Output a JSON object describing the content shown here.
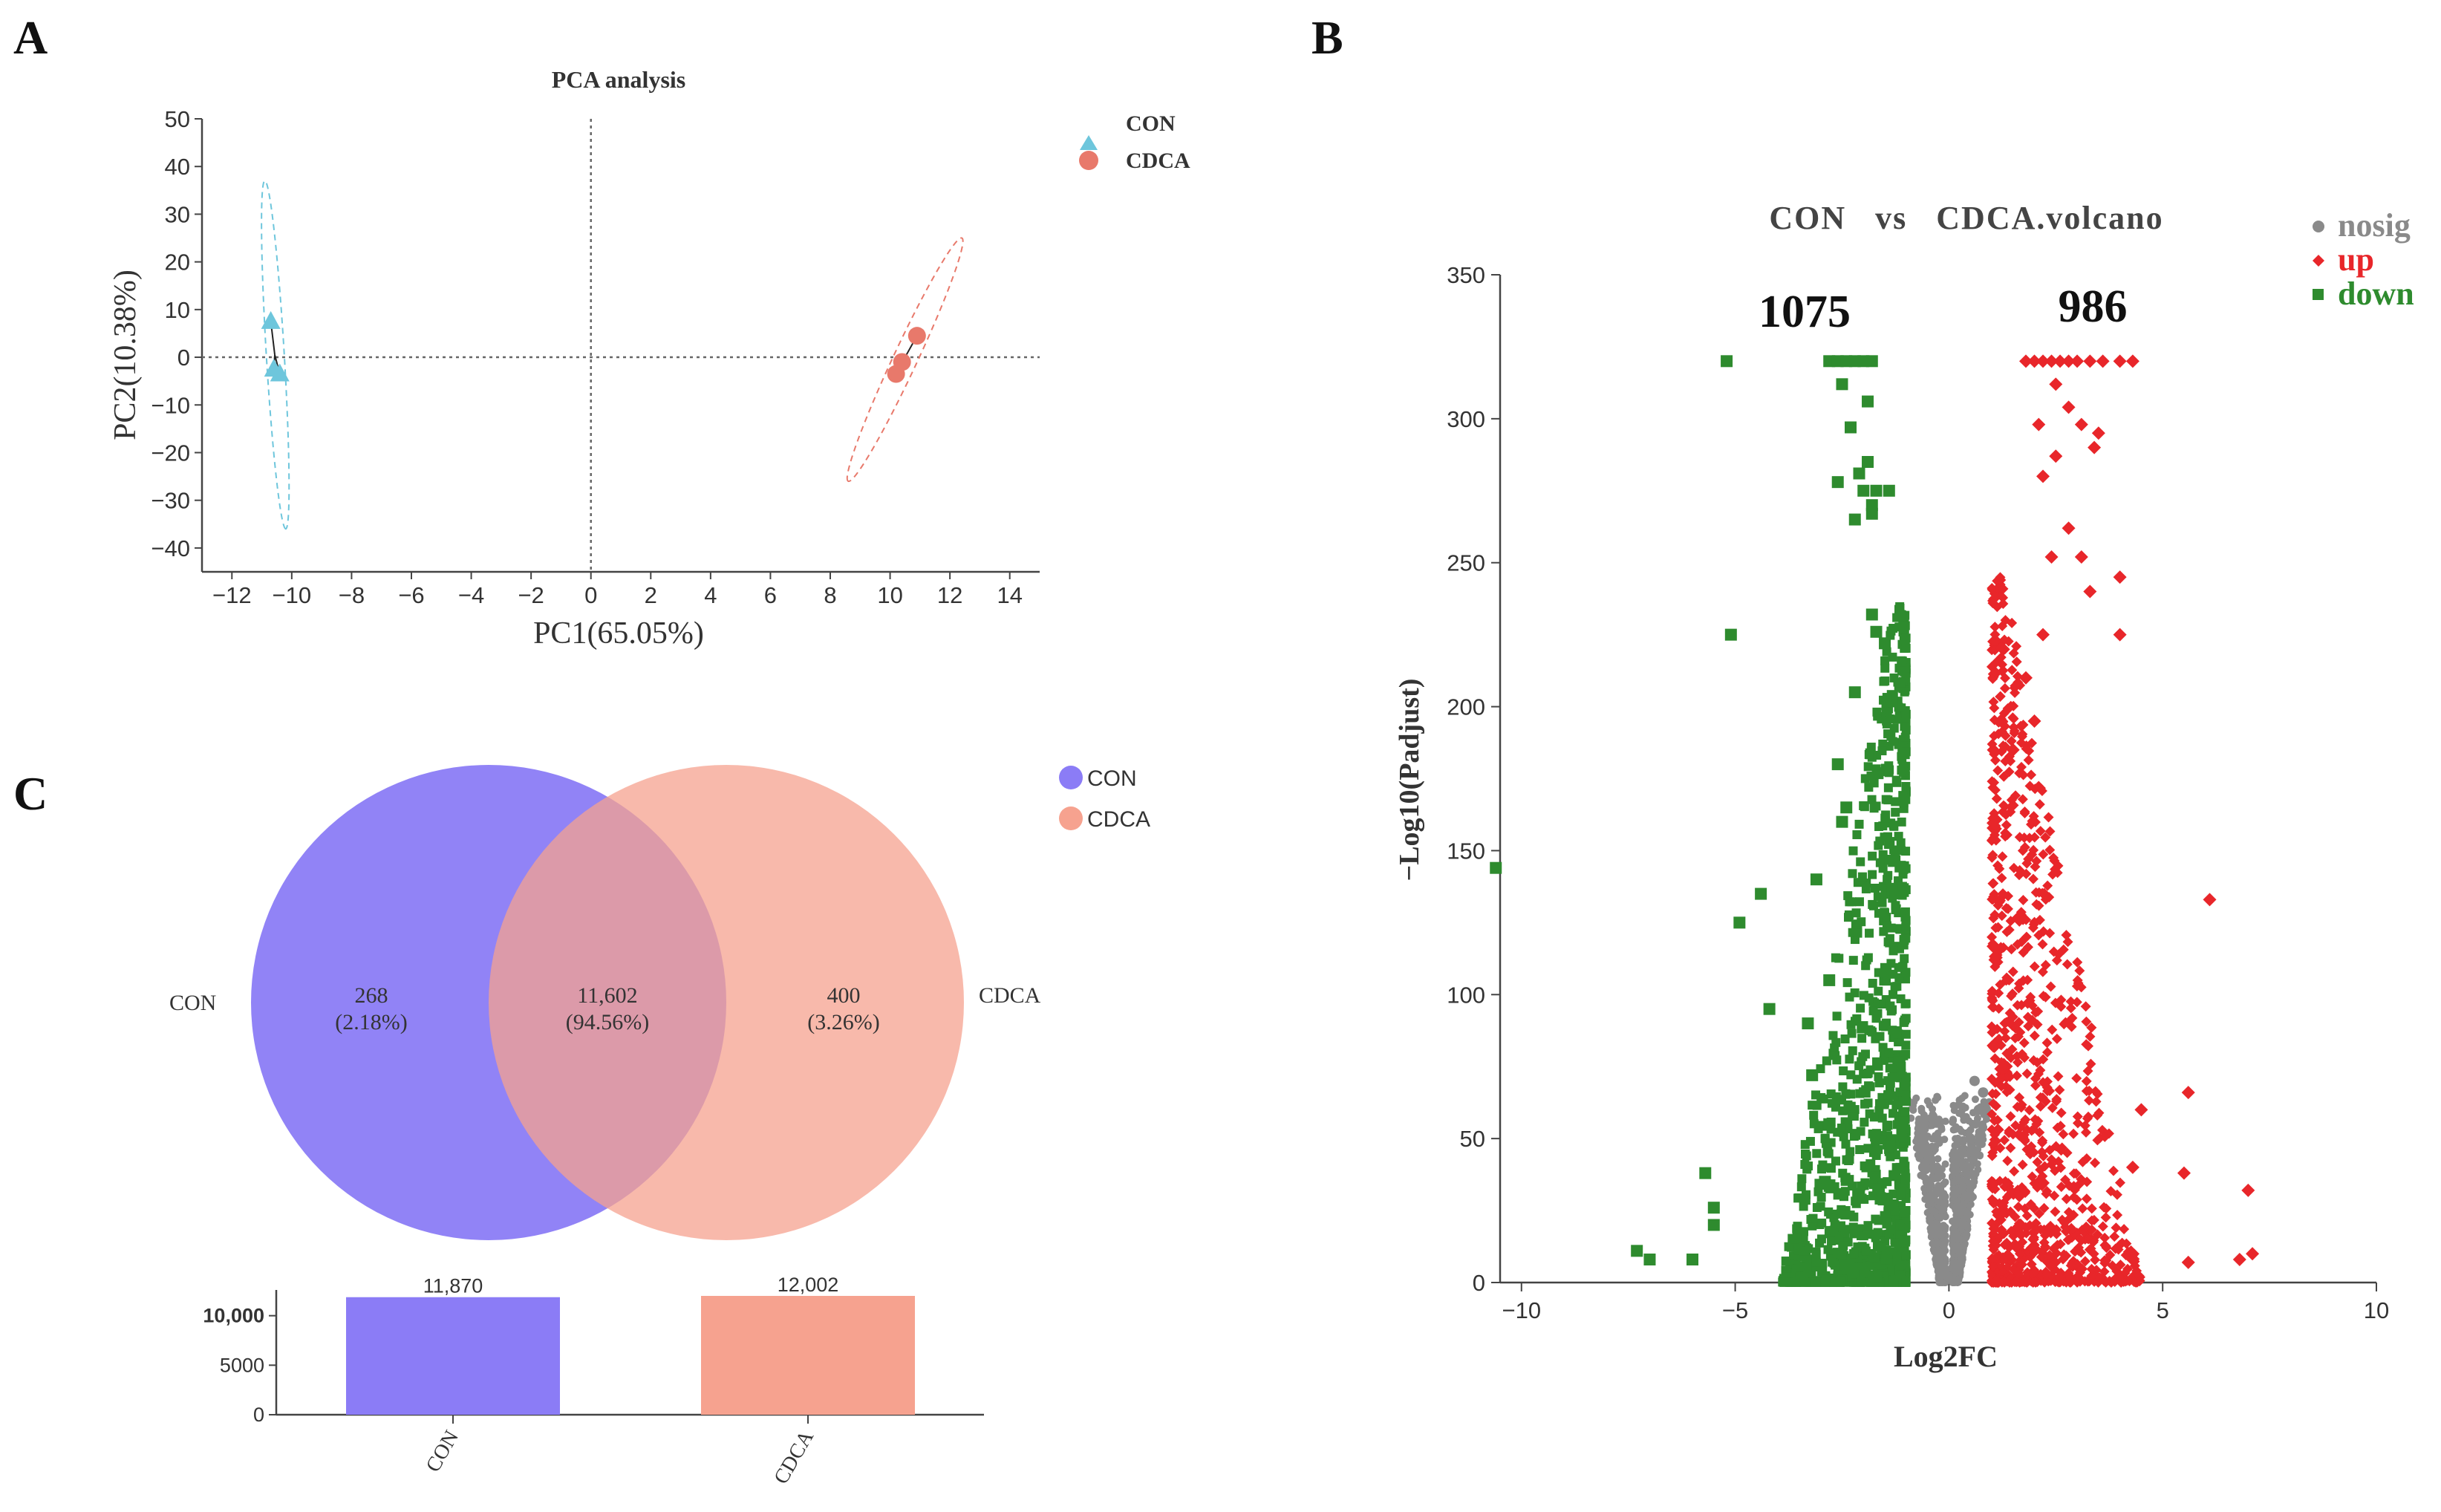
{
  "panel_labels": {
    "a": "A",
    "b": "B",
    "c": "C"
  },
  "chart_data": [
    {
      "type": "scatter",
      "panel": "A",
      "title": "PCA analysis",
      "xlabel": "PC1(65.05%)",
      "ylabel": "PC2(10.38%)",
      "xlim": [
        -13,
        15
      ],
      "ylim": [
        -45,
        50
      ],
      "xticks": [
        -12,
        -10,
        -8,
        -6,
        -4,
        -2,
        0,
        2,
        4,
        6,
        8,
        10,
        12,
        14
      ],
      "yticks": [
        50,
        40,
        30,
        20,
        10,
        0,
        -10,
        -20,
        -30,
        -40
      ],
      "series": [
        {
          "name": "CON",
          "color": "#6ec6dc",
          "marker": "triangle",
          "points": [
            [
              -10.7,
              7.5
            ],
            [
              -10.6,
              -2.5
            ],
            [
              -10.4,
              -3.5
            ]
          ],
          "ellipse": {
            "center": [
              -10.6,
              0.5
            ],
            "ends": [
              [
                -10.9,
                37
              ],
              [
                -10.2,
                -36
              ]
            ],
            "width": 0.6
          }
        },
        {
          "name": "CDCA",
          "color": "#e8796b",
          "marker": "circle",
          "points": [
            [
              10.9,
              4.5
            ],
            [
              10.4,
              -1.0
            ],
            [
              10.2,
              -3.5
            ]
          ],
          "ellipse": {
            "center": [
              10.5,
              0
            ],
            "ends": [
              [
                12.4,
                25
              ],
              [
                8.6,
                -26
              ]
            ],
            "width": 0.8
          }
        }
      ],
      "legend": [
        "CON",
        "CDCA"
      ]
    },
    {
      "type": "scatter",
      "panel": "B",
      "title": "CON   vs   CDCA.volcano",
      "xlabel": "Log2FC",
      "ylabel": "−Log10(Padjust)",
      "xlim": [
        -10.5,
        10
      ],
      "ylim": [
        0,
        350
      ],
      "xticks": [
        -10,
        -5,
        0,
        5,
        10
      ],
      "yticks": [
        0,
        50,
        100,
        150,
        200,
        250,
        300,
        350
      ],
      "annotations": {
        "down_count": "1075",
        "up_count": "986"
      },
      "legend": [
        {
          "name": "nosig",
          "color": "#8a8a8a",
          "marker": "circle"
        },
        {
          "name": "up",
          "color": "#e8262a",
          "marker": "diamond"
        },
        {
          "name": "down",
          "color": "#2e8b2e",
          "marker": "square"
        }
      ],
      "series": [
        {
          "name": "down",
          "color": "#2e8b2e",
          "points": [
            [
              -10.6,
              144
            ],
            [
              -5.2,
              320
            ],
            [
              -5.1,
              225
            ],
            [
              -4.9,
              125
            ],
            [
              -4.4,
              135
            ],
            [
              -5.7,
              38
            ],
            [
              -5.5,
              26
            ],
            [
              -5.5,
              20
            ],
            [
              -7.3,
              11
            ],
            [
              -7.0,
              8
            ],
            [
              -6.0,
              8
            ],
            [
              -2.8,
              320
            ],
            [
              -2.6,
              320
            ],
            [
              -2.4,
              320
            ],
            [
              -2.2,
              320
            ],
            [
              -2.0,
              320
            ],
            [
              -1.8,
              320
            ],
            [
              -2.5,
              312
            ],
            [
              -1.9,
              306
            ],
            [
              -2.3,
              297
            ],
            [
              -1.9,
              285
            ],
            [
              -2.1,
              281
            ],
            [
              -2.0,
              275
            ],
            [
              -1.8,
              270
            ],
            [
              -1.7,
              275
            ],
            [
              -2.6,
              278
            ],
            [
              -1.4,
              275
            ],
            [
              -1.8,
              267
            ],
            [
              -2.2,
              265
            ],
            [
              -1.8,
              232
            ],
            [
              -1.7,
              226
            ],
            [
              -1.5,
              222
            ],
            [
              -2.2,
              205
            ],
            [
              -2.6,
              180
            ],
            [
              -2.4,
              165
            ],
            [
              -2.5,
              160
            ],
            [
              -3.1,
              140
            ],
            [
              -3.2,
              72
            ],
            [
              -3.3,
              90
            ],
            [
              -2.8,
              105
            ],
            [
              -4.2,
              95
            ],
            [
              -2.8,
              55
            ],
            [
              -2.9,
              35
            ]
          ]
        },
        {
          "name": "up",
          "color": "#e8262a",
          "points": [
            [
              1.8,
              320
            ],
            [
              2.0,
              320
            ],
            [
              2.2,
              320
            ],
            [
              2.4,
              320
            ],
            [
              2.6,
              320
            ],
            [
              2.8,
              320
            ],
            [
              3.0,
              320
            ],
            [
              3.3,
              320
            ],
            [
              3.6,
              320
            ],
            [
              4.0,
              320
            ],
            [
              4.3,
              320
            ],
            [
              2.5,
              312
            ],
            [
              2.8,
              304
            ],
            [
              3.1,
              298
            ],
            [
              2.5,
              287
            ],
            [
              2.1,
              298
            ],
            [
              3.5,
              295
            ],
            [
              3.4,
              290
            ],
            [
              2.2,
              280
            ],
            [
              2.8,
              262
            ],
            [
              2.4,
              252
            ],
            [
              3.1,
              252
            ],
            [
              3.3,
              240
            ],
            [
              4.0,
              245
            ],
            [
              4.0,
              225
            ],
            [
              6.1,
              133
            ],
            [
              5.6,
              66
            ],
            [
              4.5,
              60
            ],
            [
              5.5,
              38
            ],
            [
              4.3,
              40
            ],
            [
              7.0,
              32
            ],
            [
              7.1,
              10
            ],
            [
              6.8,
              8
            ],
            [
              5.6,
              7
            ],
            [
              2.2,
              225
            ],
            [
              1.8,
              210
            ],
            [
              2.0,
              195
            ],
            [
              1.5,
              185
            ]
          ]
        },
        {
          "name": "nosig",
          "color": "#8a8a8a",
          "points": [
            [
              0.6,
              70
            ],
            [
              0.8,
              66
            ],
            [
              -0.6,
              55
            ],
            [
              -0.5,
              45
            ],
            [
              0.5,
              50
            ],
            [
              0.4,
              40
            ],
            [
              -0.4,
              30
            ],
            [
              0.3,
              25
            ],
            [
              -0.3,
              20
            ],
            [
              0.2,
              12
            ],
            [
              -0.2,
              10
            ],
            [
              0.1,
              5
            ],
            [
              -0.1,
              4
            ],
            [
              0.0,
              2
            ],
            [
              0.5,
              30
            ],
            [
              -0.5,
              35
            ],
            [
              0.7,
              60
            ],
            [
              -0.7,
              50
            ],
            [
              0.6,
              45
            ],
            [
              -0.6,
              40
            ]
          ]
        }
      ]
    },
    {
      "type": "venn",
      "panel": "C",
      "sets": [
        {
          "name": "CON",
          "color": "#8b7cf6",
          "unique": "268",
          "unique_pct": "(2.18%)",
          "total": 11870,
          "total_label": "11,870"
        },
        {
          "name": "CDCA",
          "color": "#f6a28f",
          "unique": "400",
          "unique_pct": "(3.26%)",
          "total": 12002,
          "total_label": "12,002"
        }
      ],
      "overlap": {
        "value": "11,602",
        "pct": "(94.56%)"
      },
      "legend": [
        "CON",
        "CDCA"
      ]
    },
    {
      "type": "bar",
      "panel": "C",
      "categories": [
        "CON",
        "CDCA"
      ],
      "values": [
        11870,
        12002
      ],
      "value_labels": [
        "11,870",
        "12,002"
      ],
      "colors": [
        "#8b7cf6",
        "#f6a28f"
      ],
      "yticks": [
        0,
        5000,
        10000
      ],
      "ytick_labels": [
        "0",
        "5000",
        "10,000"
      ],
      "ylim": [
        0,
        12000
      ]
    }
  ]
}
